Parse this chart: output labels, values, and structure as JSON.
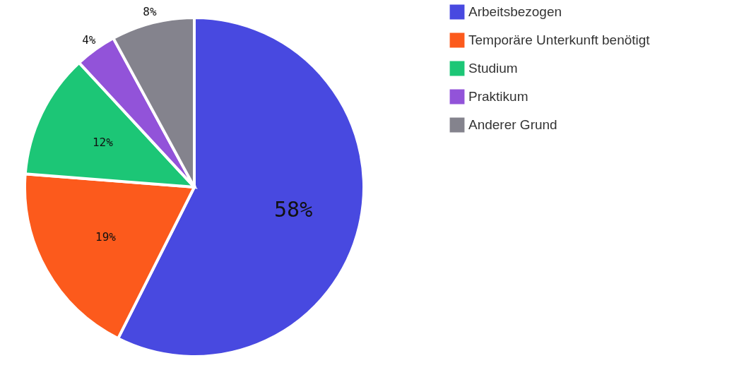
{
  "chart_data": {
    "type": "pie",
    "categories": [
      "Arbeitsbezogen",
      "Temporäre Unterkunft benötigt",
      "Studium",
      "Praktikum",
      "Anderer Grund"
    ],
    "values": [
      58,
      19,
      12,
      4,
      8
    ],
    "colors": [
      "#4849e0",
      "#fc5a1c",
      "#1cc676",
      "#9253d9",
      "#84838d"
    ],
    "value_labels": [
      "58%",
      "19%",
      "12%",
      "4%",
      "8%"
    ],
    "legend": "right"
  }
}
